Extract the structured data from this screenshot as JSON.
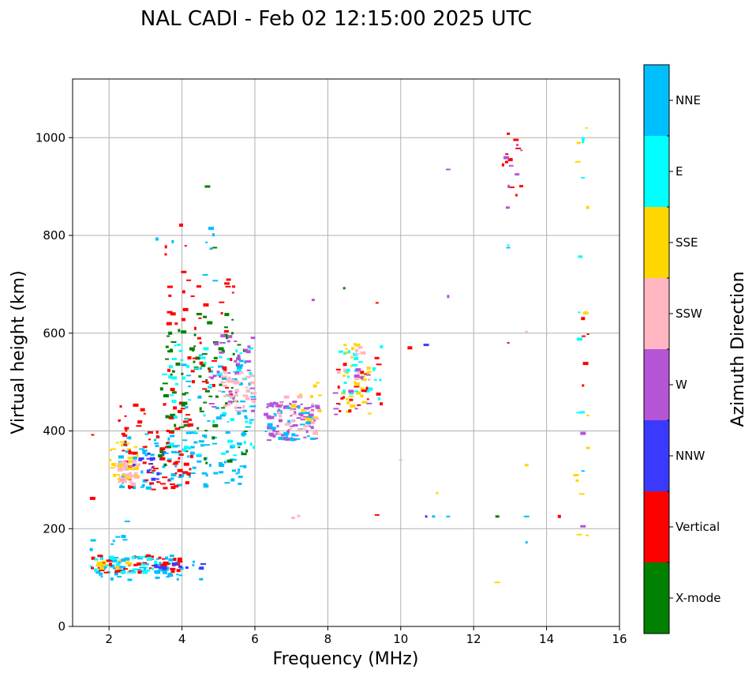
{
  "chart_data": {
    "type": "scatter",
    "title": "NAL CADI - Feb 02 12:15:00 2025 UTC",
    "xlabel": "Frequency (MHz)",
    "ylabel": "Virtual height (km)",
    "xlim": [
      1,
      16
    ],
    "ylim": [
      0,
      1120
    ],
    "xticks": [
      2,
      4,
      6,
      8,
      10,
      12,
      14,
      16
    ],
    "yticks": [
      0,
      200,
      400,
      600,
      800,
      1000
    ],
    "grid": true,
    "colorbar": {
      "label": "Azimuth Direction",
      "categories": [
        {
          "name": "X-mode",
          "color": "#008000"
        },
        {
          "name": "Vertical",
          "color": "#ff0000"
        },
        {
          "name": "NNW",
          "color": "#3a3aff"
        },
        {
          "name": "W",
          "color": "#b455d6"
        },
        {
          "name": "SSW",
          "color": "#ffb6c1"
        },
        {
          "name": "SSE",
          "color": "#ffd700"
        },
        {
          "name": "E",
          "color": "#00ffff"
        },
        {
          "name": "NNE",
          "color": "#00bfff"
        }
      ]
    },
    "clusters": [
      {
        "cat": "NNE",
        "x": [
          1.5,
          4.6
        ],
        "y": [
          95,
          145
        ],
        "n": 70
      },
      {
        "cat": "Vertical",
        "x": [
          1.5,
          4.0
        ],
        "y": [
          110,
          145
        ],
        "n": 45
      },
      {
        "cat": "E",
        "x": [
          1.5,
          3.5
        ],
        "y": [
          110,
          145
        ],
        "n": 25
      },
      {
        "cat": "NNW",
        "x": [
          3.0,
          4.6
        ],
        "y": [
          118,
          128
        ],
        "n": 10
      },
      {
        "cat": "SSE",
        "x": [
          1.6,
          2.6
        ],
        "y": [
          108,
          140
        ],
        "n": 12
      },
      {
        "cat": "NNE",
        "x": [
          2.3,
          5.8
        ],
        "y": [
          280,
          400
        ],
        "n": 110
      },
      {
        "cat": "Vertical",
        "x": [
          2.2,
          4.3
        ],
        "y": [
          280,
          460
        ],
        "n": 90
      },
      {
        "cat": "SSW",
        "x": [
          2.2,
          2.8
        ],
        "y": [
          290,
          340
        ],
        "n": 45
      },
      {
        "cat": "SSE",
        "x": [
          2.0,
          2.8
        ],
        "y": [
          300,
          380
        ],
        "n": 25
      },
      {
        "cat": "NNW",
        "x": [
          2.6,
          3.6
        ],
        "y": [
          300,
          360
        ],
        "n": 18
      },
      {
        "cat": "X-mode",
        "x": [
          3.4,
          5.8
        ],
        "y": [
          330,
          640
        ],
        "n": 90
      },
      {
        "cat": "E",
        "x": [
          3.5,
          6.0
        ],
        "y": [
          340,
          580
        ],
        "n": 60
      },
      {
        "cat": "NNE",
        "x": [
          4.0,
          6.0
        ],
        "y": [
          380,
          560
        ],
        "n": 40
      },
      {
        "cat": "Vertical",
        "x": [
          3.6,
          5.5
        ],
        "y": [
          450,
          720
        ],
        "n": 40
      },
      {
        "cat": "W",
        "x": [
          4.8,
          6.0
        ],
        "y": [
          440,
          600
        ],
        "n": 35
      },
      {
        "cat": "SSW",
        "x": [
          5.0,
          6.0
        ],
        "y": [
          440,
          520
        ],
        "n": 40
      },
      {
        "cat": "W",
        "x": [
          6.3,
          7.8
        ],
        "y": [
          380,
          460
        ],
        "n": 80
      },
      {
        "cat": "NNE",
        "x": [
          6.3,
          7.6
        ],
        "y": [
          380,
          450
        ],
        "n": 30
      },
      {
        "cat": "SSW",
        "x": [
          6.6,
          7.8
        ],
        "y": [
          390,
          470
        ],
        "n": 25
      },
      {
        "cat": "SSE",
        "x": [
          7.0,
          7.8
        ],
        "y": [
          420,
          520
        ],
        "n": 12
      },
      {
        "cat": "SSE",
        "x": [
          8.4,
          9.2
        ],
        "y": [
          430,
          580
        ],
        "n": 30
      },
      {
        "cat": "E",
        "x": [
          8.3,
          9.5
        ],
        "y": [
          460,
          580
        ],
        "n": 25
      },
      {
        "cat": "Vertical",
        "x": [
          8.2,
          9.5
        ],
        "y": [
          440,
          560
        ],
        "n": 20
      },
      {
        "cat": "W",
        "x": [
          8.2,
          9.2
        ],
        "y": [
          430,
          530
        ],
        "n": 12
      },
      {
        "cat": "SSW",
        "x": [
          8.2,
          9.2
        ],
        "y": [
          500,
          590
        ],
        "n": 10
      },
      {
        "cat": "Vertical",
        "x": [
          12.8,
          13.4
        ],
        "y": [
          820,
          1010
        ],
        "n": 10
      },
      {
        "cat": "W",
        "x": [
          12.8,
          13.4
        ],
        "y": [
          820,
          990
        ],
        "n": 6
      },
      {
        "cat": "SSE",
        "x": [
          14.8,
          15.2
        ],
        "y": [
          160,
          1020
        ],
        "n": 14
      },
      {
        "cat": "E",
        "x": [
          14.8,
          15.2
        ],
        "y": [
          300,
          1000
        ],
        "n": 6
      },
      {
        "cat": "Vertical",
        "x": [
          14.8,
          15.2
        ],
        "y": [
          480,
          640
        ],
        "n": 3
      },
      {
        "cat": "NNE",
        "x": [
          1.5,
          2.5
        ],
        "y": [
          140,
          220
        ],
        "n": 8
      },
      {
        "cat": "NNE",
        "x": [
          3.3,
          5.0
        ],
        "y": [
          700,
          840
        ],
        "n": 8
      },
      {
        "cat": "Vertical",
        "x": [
          3.0,
          4.5
        ],
        "y": [
          660,
          880
        ],
        "n": 8
      }
    ],
    "points": [
      {
        "x": 1.55,
        "y": 262,
        "cat": "Vertical"
      },
      {
        "x": 1.55,
        "y": 392,
        "cat": "Vertical"
      },
      {
        "x": 4.7,
        "y": 900,
        "cat": "X-mode"
      },
      {
        "x": 4.9,
        "y": 775,
        "cat": "X-mode"
      },
      {
        "x": 8.45,
        "y": 692,
        "cat": "X-mode"
      },
      {
        "x": 9.35,
        "y": 662,
        "cat": "Vertical"
      },
      {
        "x": 7.6,
        "y": 668,
        "cat": "W"
      },
      {
        "x": 11.3,
        "y": 675,
        "cat": "W"
      },
      {
        "x": 11.3,
        "y": 935,
        "cat": "W"
      },
      {
        "x": 10.25,
        "y": 570,
        "cat": "Vertical"
      },
      {
        "x": 10.7,
        "y": 576,
        "cat": "NNW"
      },
      {
        "x": 10.0,
        "y": 340,
        "cat": "SSW"
      },
      {
        "x": 11.0,
        "y": 273,
        "cat": "SSE"
      },
      {
        "x": 9.35,
        "y": 228,
        "cat": "Vertical"
      },
      {
        "x": 10.7,
        "y": 225,
        "cat": "NNW"
      },
      {
        "x": 10.9,
        "y": 225,
        "cat": "NNE"
      },
      {
        "x": 11.3,
        "y": 225,
        "cat": "NNE"
      },
      {
        "x": 7.05,
        "y": 222,
        "cat": "SSW"
      },
      {
        "x": 7.2,
        "y": 226,
        "cat": "SSW"
      },
      {
        "x": 12.65,
        "y": 225,
        "cat": "X-mode"
      },
      {
        "x": 13.45,
        "y": 225,
        "cat": "NNE"
      },
      {
        "x": 14.35,
        "y": 225,
        "cat": "Vertical"
      },
      {
        "x": 13.45,
        "y": 172,
        "cat": "NNE"
      },
      {
        "x": 12.65,
        "y": 90,
        "cat": "SSE"
      },
      {
        "x": 13.45,
        "y": 330,
        "cat": "SSE"
      },
      {
        "x": 13.45,
        "y": 603,
        "cat": "SSW"
      },
      {
        "x": 12.95,
        "y": 580,
        "cat": "Vertical"
      },
      {
        "x": 12.95,
        "y": 775,
        "cat": "NNE"
      },
      {
        "x": 12.95,
        "y": 780,
        "cat": "E"
      },
      {
        "x": 12.95,
        "y": 1008,
        "cat": "Vertical"
      },
      {
        "x": 13.2,
        "y": 985,
        "cat": "W"
      },
      {
        "x": 15.0,
        "y": 395,
        "cat": "W"
      },
      {
        "x": 15.0,
        "y": 205,
        "cat": "W"
      },
      {
        "x": 15.0,
        "y": 318,
        "cat": "NNE"
      },
      {
        "x": 15.0,
        "y": 992,
        "cat": "E"
      },
      {
        "x": 15.0,
        "y": 918,
        "cat": "E"
      },
      {
        "x": 15.0,
        "y": 630,
        "cat": "Vertical"
      },
      {
        "x": 15.0,
        "y": 493,
        "cat": "Vertical"
      }
    ]
  }
}
